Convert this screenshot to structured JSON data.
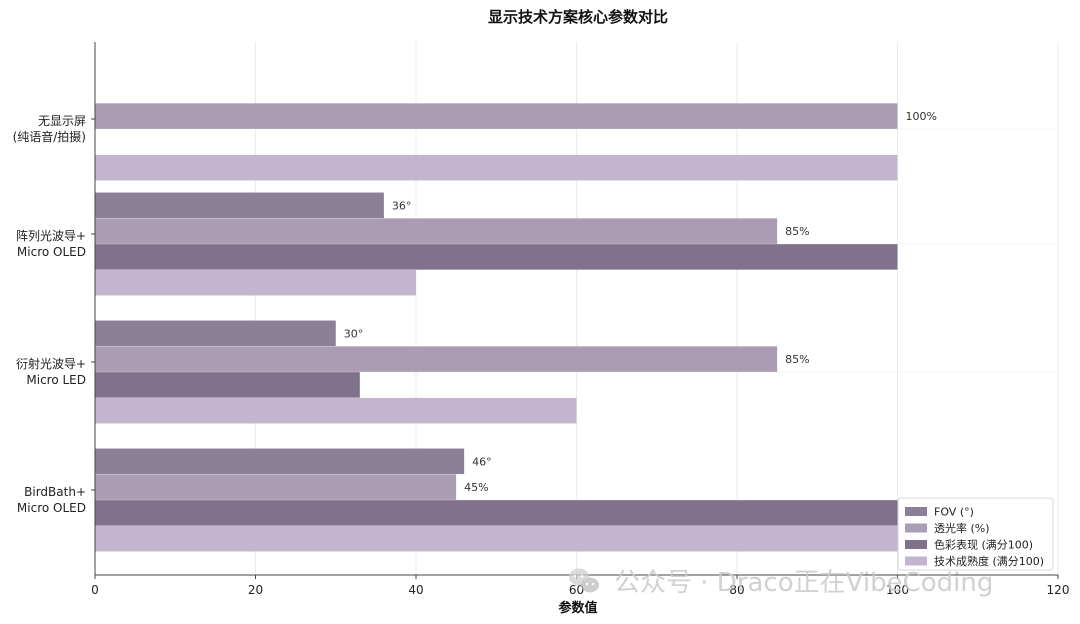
{
  "chart_data": {
    "type": "bar",
    "orientation": "horizontal",
    "title": "显示技术方案核心参数对比",
    "xlabel": "参数值",
    "ylabel": "",
    "xlim": [
      0,
      120
    ],
    "xticks": [
      0,
      20,
      40,
      60,
      80,
      100,
      120
    ],
    "grid": true,
    "legend_position": "bottom-right",
    "categories": [
      [
        "无显示屏",
        "(纯语音/拍摄)"
      ],
      [
        "阵列光波导+",
        "Micro OLED"
      ],
      [
        "衍射光波导+",
        "Micro LED"
      ],
      [
        "BirdBath+",
        "Micro OLED"
      ]
    ],
    "series": [
      {
        "name": "FOV (°)",
        "color": "#8c8099",
        "values": [
          0,
          36,
          30,
          46
        ],
        "labels": [
          "",
          "36°",
          "30°",
          "46°"
        ]
      },
      {
        "name": "透光率 (%)",
        "color": "#aa9db3",
        "values": [
          100,
          85,
          85,
          45
        ],
        "labels": [
          "100%",
          "85%",
          "85%",
          "45%"
        ]
      },
      {
        "name": "色彩表现 (满分100)",
        "color": "#80728c",
        "values": [
          0,
          100,
          33,
          100
        ],
        "labels": [
          "",
          "",
          "",
          ""
        ]
      },
      {
        "name": "技术成熟度 (满分100)",
        "color": "#c3b4d0",
        "values": [
          100,
          40,
          60,
          100
        ],
        "labels": [
          "",
          "",
          "",
          ""
        ]
      }
    ]
  },
  "watermark": {
    "text": "公众号 · Draco正在VibeCoding",
    "icon": "wechat-icon"
  }
}
